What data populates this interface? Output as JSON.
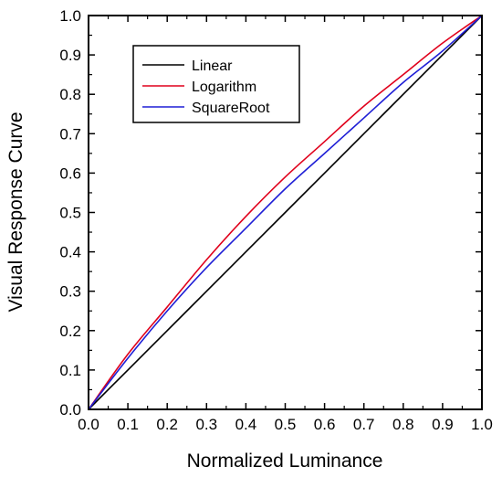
{
  "chart_data": {
    "type": "line",
    "title": "",
    "xlabel": "Normalized Luminance",
    "ylabel": "Visual Response Curve",
    "xlim": [
      0.0,
      1.0
    ],
    "ylim": [
      0.0,
      1.0
    ],
    "xticks": [
      "0.0",
      "0.1",
      "0.2",
      "0.3",
      "0.4",
      "0.5",
      "0.6",
      "0.7",
      "0.8",
      "0.9",
      "1.0"
    ],
    "yticks": [
      "0.0",
      "0.1",
      "0.2",
      "0.3",
      "0.4",
      "0.5",
      "0.6",
      "0.7",
      "0.8",
      "0.9",
      "1.0"
    ],
    "grid": false,
    "legend_position": "top-left",
    "x": [
      0.0,
      0.1,
      0.2,
      0.3,
      0.4,
      0.5,
      0.6,
      0.7,
      0.8,
      0.9,
      1.0
    ],
    "series": [
      {
        "name": "Linear",
        "color": "#000000",
        "values": [
          0.0,
          0.1,
          0.2,
          0.3,
          0.4,
          0.5,
          0.6,
          0.7,
          0.8,
          0.9,
          1.0
        ]
      },
      {
        "name": "Logarithm",
        "color": "#e0001b",
        "values": [
          0.0,
          0.14,
          0.26,
          0.38,
          0.49,
          0.59,
          0.68,
          0.77,
          0.85,
          0.93,
          1.0
        ]
      },
      {
        "name": "SquareRoot",
        "color": "#1f1fd6",
        "values": [
          0.0,
          0.13,
          0.25,
          0.36,
          0.46,
          0.56,
          0.65,
          0.74,
          0.83,
          0.91,
          1.0
        ]
      }
    ]
  }
}
